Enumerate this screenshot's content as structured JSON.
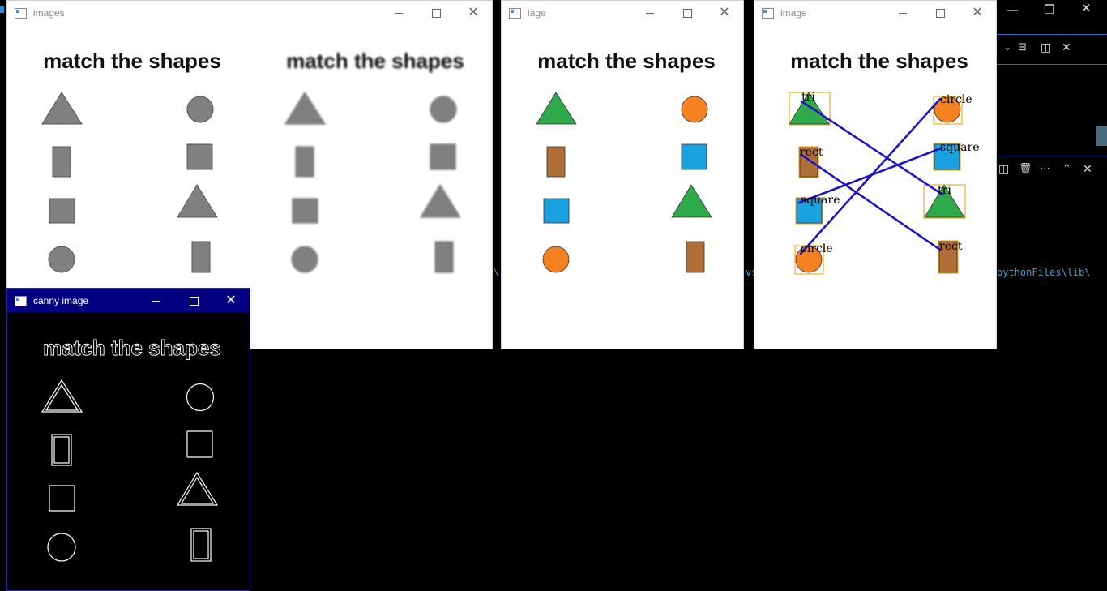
{
  "windows": {
    "images": {
      "title": "images",
      "heading": "match the shapes"
    },
    "iage": {
      "title": "iage",
      "heading": "match the shapes"
    },
    "image": {
      "title": "image",
      "heading": "match the shapes",
      "labels": {
        "tri_left": "tri",
        "rect_left": "rect",
        "square_left": "square",
        "circle_left": "circle",
        "circle_right": "circle",
        "square_right": "square",
        "tri_right": "tri",
        "rect_right": "rect"
      }
    },
    "canny": {
      "title": "canny image",
      "heading": "match the shapes"
    }
  },
  "background": {
    "terminal_path_text": "pythonFiles\\lib\\"
  },
  "colors": {
    "gray_fill": "#808080",
    "gray_stroke": "#555555",
    "triangle": "#2eaa4a",
    "rect": "#b06e38",
    "square": "#1aa1e0",
    "circle": "#f5821f",
    "bbox": "#e6a100",
    "line": "#1a10c8",
    "active_title": "#000080"
  },
  "icons": [
    "app-window-icon",
    "minimize-icon",
    "maximize-icon",
    "close-icon"
  ]
}
